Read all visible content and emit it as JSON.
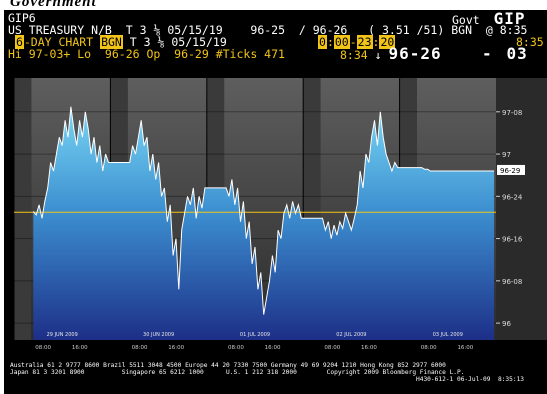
{
  "caption": "Government",
  "header": {
    "ticker": "GIP6",
    "source_right_a": "Govt",
    "source_right_b": "GIP",
    "security": "US TREASURY N/B",
    "coupon": "T 3",
    "coupon_frac": "⅛",
    "maturity": "05/15/19",
    "bid_ask": "96-25  / 96-26",
    "yields": "( 3.51 /51)",
    "source": "BGN",
    "time": "@ 8:35",
    "chart_days": "6",
    "chart_label": "-DAY CHART",
    "chart_source": "BGN",
    "chart_security": "T 3",
    "chart_frac": "⅛",
    "chart_maturity": "05/15/19",
    "hh1": "0",
    "mm1": "00",
    "hh2": "23",
    "mm2": "20",
    "time_right": "8:35",
    "stats": "Hi 97-03+ Lo  96-26 Op  96-29 #Ticks 471",
    "last_time": "8:34",
    "arrow": "↓",
    "last_price": "96-26",
    "change_sign": "-",
    "change": "03"
  },
  "chart_data": {
    "type": "area",
    "y_unit": "32nds of a point",
    "y_ticks": [
      {
        "label": "97-08",
        "value": 97.25
      },
      {
        "label": "97",
        "value": 97.0
      },
      {
        "label": "96-24",
        "value": 96.75
      },
      {
        "label": "96-16",
        "value": 96.5
      },
      {
        "label": "96-08",
        "value": 96.25
      },
      {
        "label": "96",
        "value": 96.0
      }
    ],
    "last_label": "96-29",
    "last_value": 96.906,
    "reference_value": 96.656,
    "ylim": [
      95.9,
      97.45
    ],
    "day_labels": [
      "29 JUN 2009",
      "30 JUN 2009",
      "01 JUL 2009",
      "02 JUL 2009",
      "03 JUL 2009"
    ],
    "time_ticks": [
      "08:00",
      "16:00"
    ],
    "series": [
      {
        "days": [
          [
            96.66,
            96.64,
            96.7,
            96.62,
            96.72,
            96.8,
            96.95,
            96.9,
            97.0,
            97.1,
            97.05,
            97.2,
            97.1,
            97.28,
            97.15,
            97.05,
            97.2,
            97.1,
            97.25,
            97.15,
            97.0,
            97.1,
            96.95,
            97.05,
            96.9,
            97.0,
            96.95
          ],
          [
            96.95,
            97.05,
            97.0,
            97.1,
            97.2,
            97.05,
            97.1,
            96.9,
            97.0,
            96.85,
            96.95,
            96.75,
            96.8,
            96.6,
            96.7,
            96.4,
            96.5,
            96.2,
            96.55,
            96.65,
            96.75,
            96.7,
            96.8,
            96.62,
            96.75,
            96.68,
            96.8
          ],
          [
            96.8,
            96.75,
            96.85,
            96.7,
            96.8,
            96.6,
            96.72,
            96.5,
            96.6,
            96.35,
            96.45,
            96.2,
            96.3,
            96.05,
            96.15,
            96.25,
            96.4,
            96.3,
            96.55,
            96.5,
            96.65,
            96.7,
            96.62,
            96.72,
            96.65,
            96.7,
            96.62
          ],
          [
            96.62,
            96.55,
            96.6,
            96.5,
            96.58,
            96.52,
            96.6,
            96.56,
            96.65,
            96.6,
            96.55,
            96.62,
            96.7,
            96.9,
            96.8,
            97.0,
            96.95,
            97.1,
            97.2,
            97.05,
            97.25,
            97.1,
            97.0,
            96.95,
            96.9,
            96.95,
            96.92
          ],
          [
            96.92,
            96.92,
            96.91,
            96.91,
            96.9,
            96.9,
            96.9,
            96.9,
            96.9,
            96.9,
            96.9,
            96.9,
            96.9,
            96.9,
            96.9,
            96.9,
            96.9,
            96.9,
            96.9,
            96.9,
            96.9,
            96.9,
            96.9,
            96.9,
            96.9,
            96.9,
            96.9
          ]
        ]
      }
    ]
  },
  "footer": {
    "line1": "Australia 61 2 9777 8600 Brazil 5511 3048 4500 Europe 44 20 7330 7500 Germany 49 69 9204 1210 Hong Kong 852 2977 6000",
    "line2": "Japan 81 3 3201 8900          Singapore 65 6212 1000      U.S. 1 212 318 2000        Copyright 2009 Bloomberg Finance L.P.",
    "line3": "H430-612-1 06-Jul-09  8:35:13"
  },
  "colors": {
    "yellow": "#f2c417",
    "area_top": "#79d6f4",
    "area_bottom": "#1d2f88",
    "line": "#ffffff",
    "panel_dark": "#3b3b3b",
    "panel_light": "#5a5a5a"
  }
}
